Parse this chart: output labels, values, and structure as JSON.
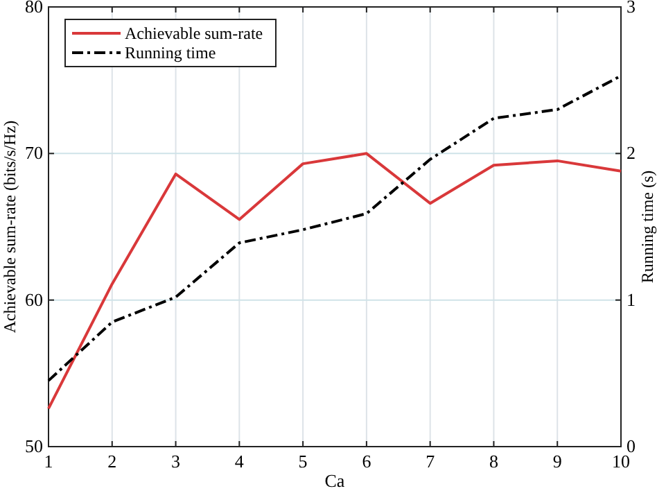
{
  "chart_data": {
    "type": "line",
    "xlabel": "Ca",
    "ylabel": "Achievable sum-rate (bits/s/Hz)",
    "y2label": "Running time (s)",
    "x": [
      1,
      2,
      3,
      4,
      5,
      6,
      7,
      8,
      9,
      10
    ],
    "series": [
      {
        "name": "Achievable sum-rate",
        "color": "#d9383a",
        "line_style": "solid",
        "values": [
          52.6,
          61.1,
          68.6,
          65.5,
          69.3,
          70.0,
          66.6,
          69.2,
          69.5,
          68.8
        ]
      },
      {
        "name": "Running time",
        "color": "#000000",
        "line_style": "dashdot",
        "axis": "y2",
        "values": [
          0.45,
          0.85,
          1.02,
          1.39,
          1.48,
          1.59,
          1.96,
          2.24,
          2.3,
          2.53
        ]
      }
    ],
    "xlim": [
      1,
      10
    ],
    "xticks": [
      1,
      2,
      3,
      4,
      5,
      6,
      7,
      8,
      9,
      10
    ],
    "ylim": [
      50,
      80
    ],
    "yticks": [
      50,
      60,
      70,
      80
    ],
    "y2lim": [
      0,
      3
    ],
    "y2ticks": [
      0,
      1,
      2,
      3
    ],
    "grid": true,
    "legend": "top left"
  }
}
